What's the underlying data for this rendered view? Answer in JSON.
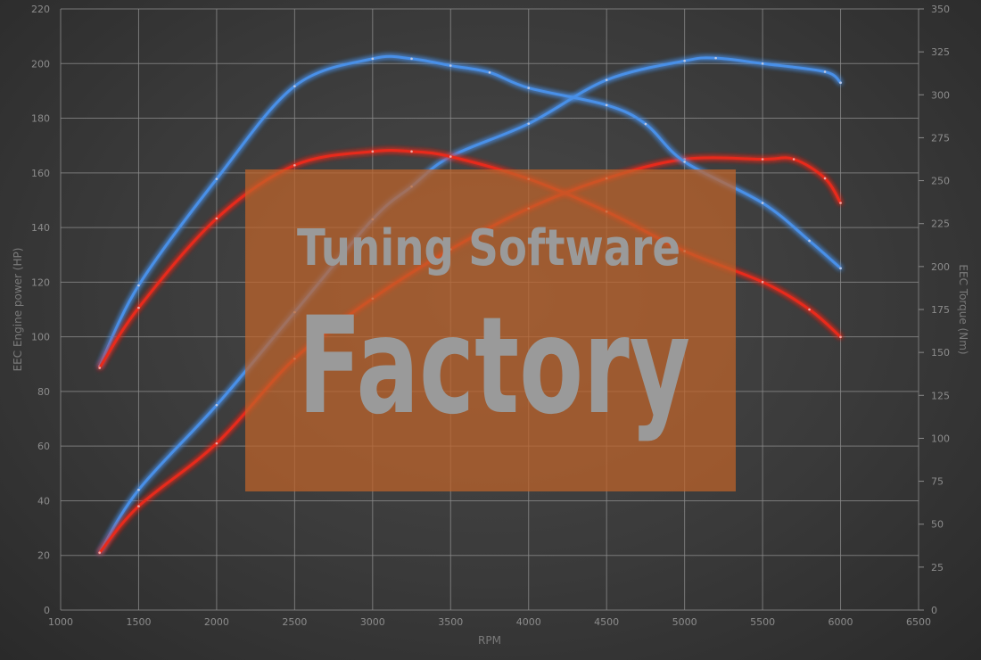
{
  "chart_data": {
    "type": "line",
    "title": "",
    "xlabel": "RPM",
    "ylabel_left": "EEC Engine power (HP)",
    "ylabel_right": "EEC Torque (Nm)",
    "xlim": [
      1000,
      6500
    ],
    "ylim_left": [
      0,
      220
    ],
    "ylim_right": [
      0,
      350
    ],
    "x_ticks": [
      1000,
      1500,
      2000,
      2500,
      3000,
      3500,
      4000,
      4500,
      5000,
      5500,
      6000,
      6500
    ],
    "y_ticks_left": [
      0,
      20,
      40,
      60,
      80,
      100,
      120,
      140,
      160,
      180,
      200,
      220
    ],
    "y_ticks_right": [
      0,
      25,
      50,
      75,
      100,
      125,
      150,
      175,
      200,
      225,
      250,
      275,
      300,
      325,
      350
    ],
    "grid": true,
    "legend": "none",
    "colors": {
      "tuned": "#4a90e8",
      "stock": "#e82a1e",
      "background": "#3c3c3c",
      "grid": "#8a8a8a"
    },
    "series": [
      {
        "axis": "left",
        "color": "#4a90e8",
        "x": [
          1250,
          1500,
          2000,
          2500,
          3000,
          3250,
          3500,
          4000,
          4500,
          5000,
          5200,
          5500,
          5900,
          6000
        ],
        "y": [
          21,
          44,
          75,
          109,
          143,
          155,
          166,
          178,
          194,
          201,
          202,
          200,
          197,
          193
        ]
      },
      {
        "axis": "left",
        "color": "#e82a1e",
        "x": [
          1250,
          1500,
          2000,
          2500,
          3000,
          3500,
          4000,
          4500,
          5000,
          5500,
          5700,
          5900,
          6000
        ],
        "y": [
          21,
          38,
          61,
          92,
          114,
          132,
          147,
          158,
          165,
          165,
          165,
          158,
          149
        ]
      },
      {
        "axis": "right",
        "color": "#4a90e8",
        "x": [
          1250,
          1500,
          2000,
          2500,
          3000,
          3250,
          3500,
          3750,
          4000,
          4500,
          4750,
          5000,
          5500,
          5800,
          6000
        ],
        "y": [
          142,
          189,
          251,
          305,
          321,
          321,
          317,
          313,
          304,
          294,
          283,
          261,
          237,
          215,
          199
        ]
      },
      {
        "axis": "right",
        "color": "#e82a1e",
        "x": [
          1250,
          1500,
          2000,
          2500,
          3000,
          3250,
          3500,
          4000,
          4500,
          5000,
          5500,
          5800,
          6000
        ],
        "y": [
          141,
          176,
          228,
          259,
          267,
          267,
          264,
          251,
          232,
          209,
          191,
          175,
          159
        ]
      }
    ]
  },
  "watermark": {
    "line1": "Tuning Software",
    "line2": "Factory",
    "box_color": "#c0642a"
  }
}
